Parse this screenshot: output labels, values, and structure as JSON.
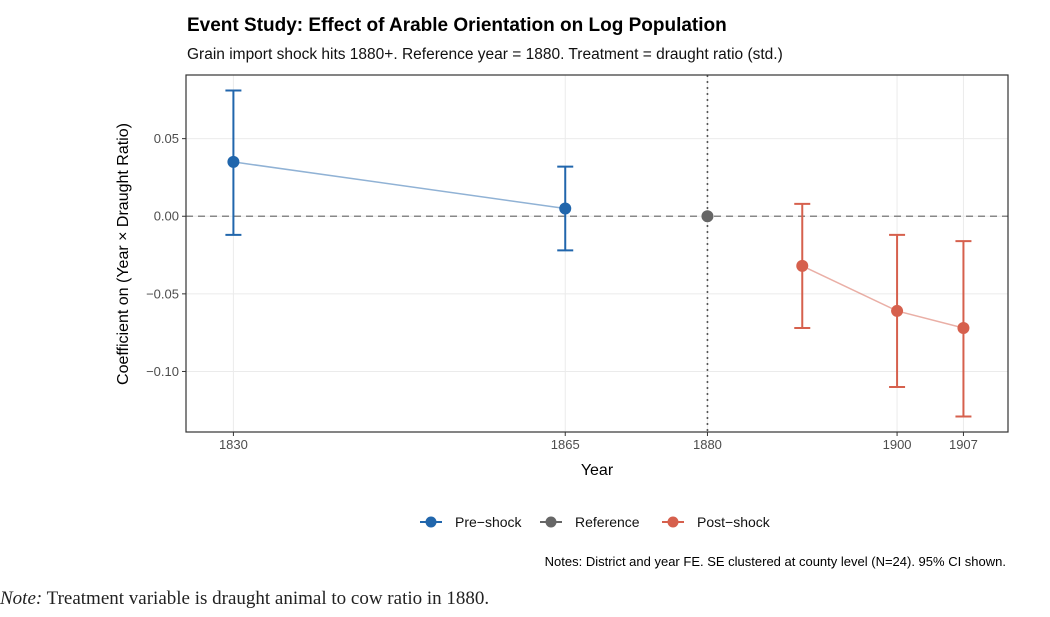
{
  "chart_data": {
    "type": "scatter",
    "title": "Event Study: Effect of Arable Orientation on Log Population",
    "subtitle": "Grain import shock hits 1880+. Reference year = 1880. Treatment = draught ratio (std.)",
    "xlabel": "Year",
    "ylabel": "Coefficient on (Year × Draught Ratio)",
    "xlim": [
      1825,
      1911.7
    ],
    "ylim": [
      -0.139,
      0.091
    ],
    "xticks": [
      1830,
      1865,
      1880,
      1900,
      1907
    ],
    "yticks": [
      0.05,
      0.0,
      -0.05,
      -0.1
    ],
    "ytick_labels": [
      "0.05",
      "0.00",
      "−0.05",
      "−0.10"
    ],
    "grid": true,
    "reference_lines": {
      "hline": 0,
      "vline": 1880
    },
    "legend_position": "bottom",
    "series": [
      {
        "name": "Pre−shock",
        "color": "#2166ac",
        "points": [
          {
            "x": 1830,
            "y": 0.035,
            "lo": -0.012,
            "hi": 0.081
          },
          {
            "x": 1865,
            "y": 0.005,
            "lo": -0.022,
            "hi": 0.032
          }
        ]
      },
      {
        "name": "Reference",
        "color": "#666666",
        "points": [
          {
            "x": 1880,
            "y": 0.0
          }
        ]
      },
      {
        "name": "Post−shock",
        "color": "#d6604d",
        "points": [
          {
            "x": 1890,
            "y": -0.032,
            "lo": -0.072,
            "hi": 0.008
          },
          {
            "x": 1900,
            "y": -0.061,
            "lo": -0.11,
            "hi": -0.012
          },
          {
            "x": 1907,
            "y": -0.072,
            "lo": -0.129,
            "hi": -0.016
          }
        ]
      }
    ],
    "caption": "Notes: District and year FE. SE clustered at county level (N=24). 95% CI shown."
  },
  "note": {
    "label": "Note:",
    "text": " Treatment variable is draught animal to cow ratio in 1880."
  }
}
